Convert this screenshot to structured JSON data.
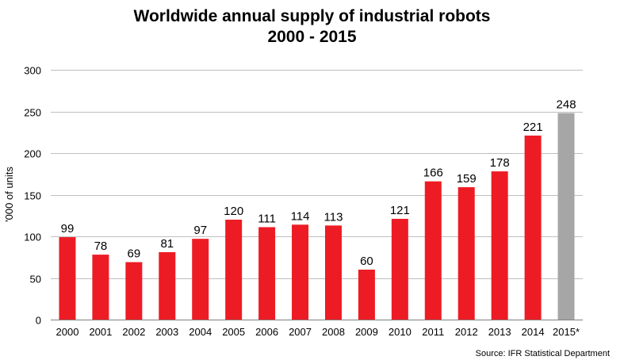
{
  "chart_data": {
    "type": "bar",
    "title": "Worldwide annual supply of industrial robots",
    "subtitle": "2000 - 2015",
    "ylabel": "'000 of units",
    "xlabel": "",
    "ylim": [
      0,
      300
    ],
    "yticks": [
      0,
      50,
      100,
      150,
      200,
      250,
      300
    ],
    "grid": true,
    "categories": [
      "2000",
      "2001",
      "2002",
      "2003",
      "2004",
      "2005",
      "2006",
      "2007",
      "2008",
      "2009",
      "2010",
      "2011",
      "2012",
      "2013",
      "2014",
      "2015*"
    ],
    "values": [
      99,
      78,
      69,
      81,
      97,
      120,
      111,
      114,
      113,
      60,
      121,
      166,
      159,
      178,
      221,
      248
    ],
    "bar_colors": [
      "#ed1c24",
      "#ed1c24",
      "#ed1c24",
      "#ed1c24",
      "#ed1c24",
      "#ed1c24",
      "#ed1c24",
      "#ed1c24",
      "#ed1c24",
      "#ed1c24",
      "#ed1c24",
      "#ed1c24",
      "#ed1c24",
      "#ed1c24",
      "#ed1c24",
      "#a6a6a6"
    ],
    "source": "Source: IFR Statistical Department"
  }
}
